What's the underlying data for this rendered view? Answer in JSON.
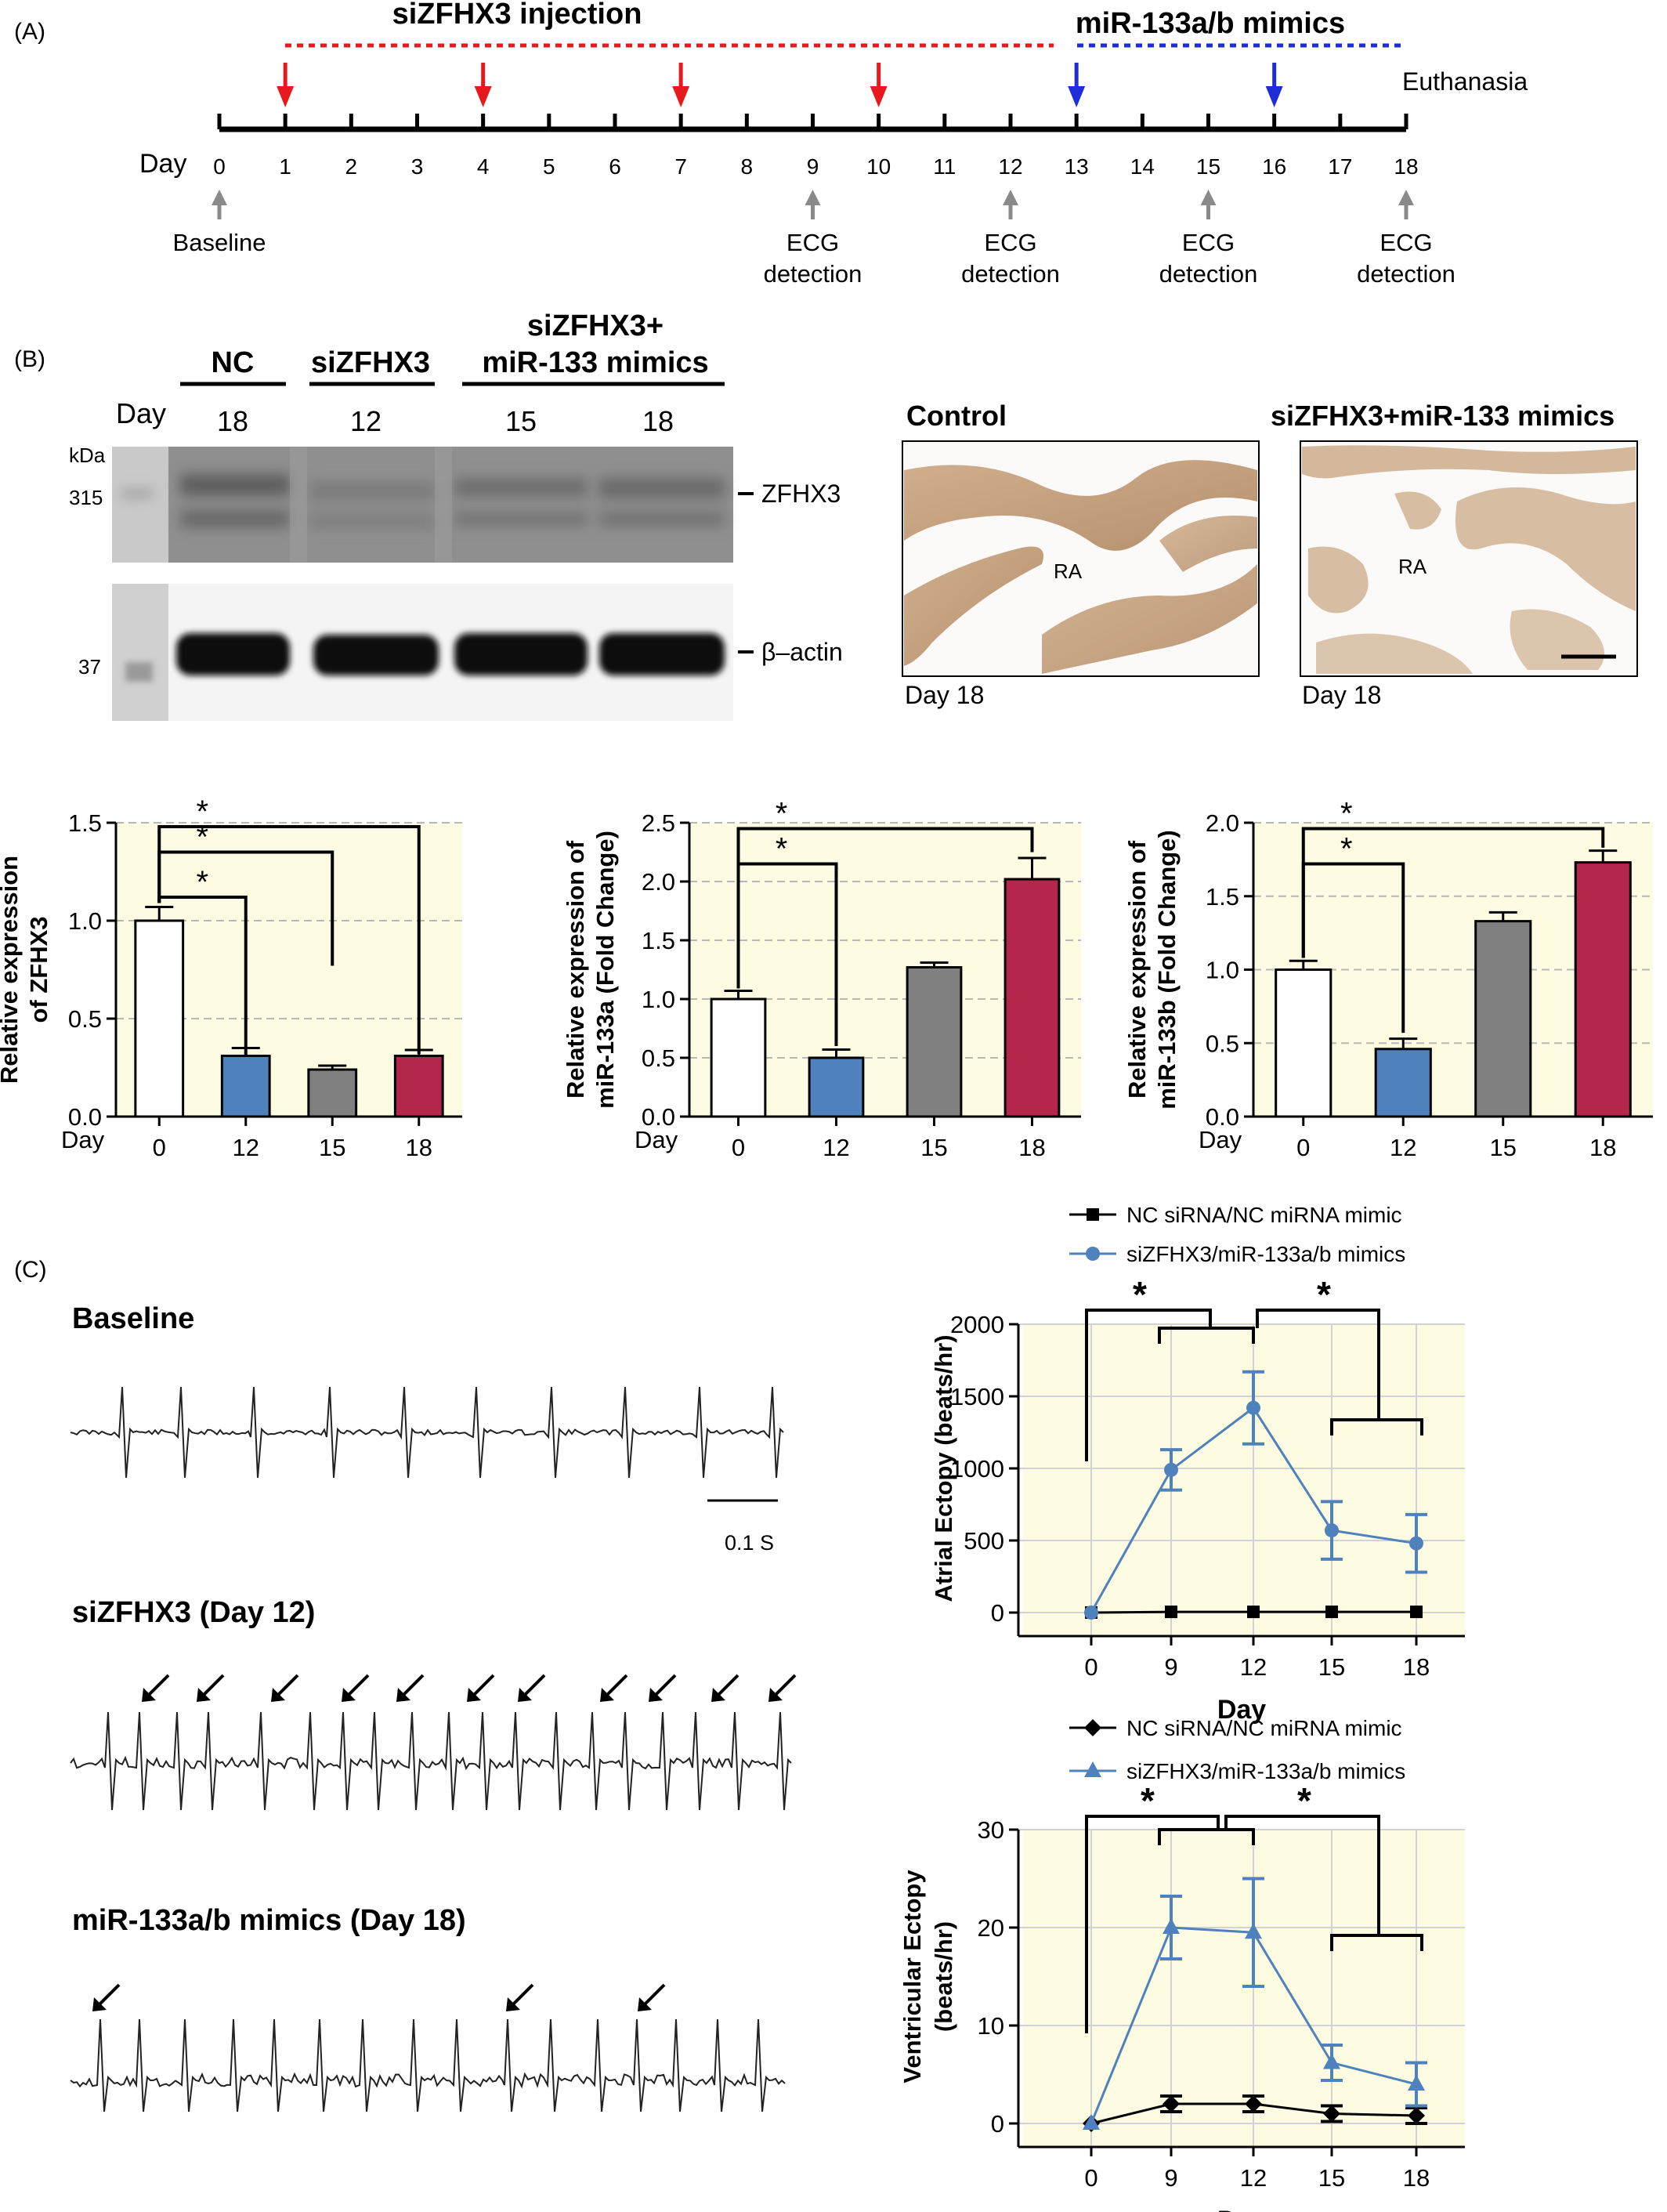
{
  "panelA": {
    "label": "(A)",
    "siZFHX3_label": "siZFHX3 injection",
    "mimics_label": "miR-133a/b mimics",
    "euthanasia": "Euthanasia",
    "day_label": "Day",
    "days": [
      "0",
      "1",
      "2",
      "3",
      "4",
      "5",
      "6",
      "7",
      "8",
      "9",
      "10",
      "11",
      "12",
      "13",
      "14",
      "15",
      "16",
      "17",
      "18"
    ],
    "red_arrow_days": [
      1,
      4,
      7,
      10
    ],
    "blue_arrow_days": [
      13,
      16
    ],
    "baseline": "Baseline",
    "ecg_events": [
      {
        "day": 9,
        "line1": "ECG",
        "line2": "detection"
      },
      {
        "day": 12,
        "line1": "ECG",
        "line2": "detection"
      },
      {
        "day": 15,
        "line1": "ECG",
        "line2": "detection"
      },
      {
        "day": 18,
        "line1": "ECG",
        "line2": "detection"
      }
    ],
    "colors": {
      "red": "#e8191d",
      "blue": "#1f2dd8",
      "gray": "#8a8a8a"
    }
  },
  "panelB": {
    "label": "(B)",
    "blot": {
      "group_nc": "NC",
      "group_si": "siZFHX3",
      "group_combo_line1": "siZFHX3+",
      "group_combo_line2": "miR-133 mimics",
      "day_label": "Day",
      "lane_days": [
        "18",
        "12",
        "15",
        "18"
      ],
      "kda": "kDa",
      "marker_top": "315",
      "marker_bottom": "37",
      "band_top": "ZFHX3",
      "band_bottom": "β–actin"
    },
    "histology": {
      "control_title": "Control",
      "combo_title": "siZFHX3+miR-133 mimics",
      "region": "RA",
      "day": "Day 18"
    },
    "bars": [
      {
        "ylabel1": "Relative expression",
        "ylabel2": "of ZFHX3",
        "ymax": 1.5,
        "yticks": [
          "0.0",
          "0.5",
          "1.0",
          "1.5"
        ],
        "values": [
          1.0,
          0.31,
          0.24,
          0.31
        ],
        "errors": [
          0.07,
          0.04,
          0.02,
          0.03
        ]
      },
      {
        "ylabel1": "Relative expression of",
        "ylabel2": "miR-133a (Fold Change)",
        "ymax": 2.5,
        "yticks": [
          "0.0",
          "0.5",
          "1.0",
          "1.5",
          "2.0",
          "2.5"
        ],
        "values": [
          1.0,
          0.5,
          1.27,
          2.02
        ],
        "errors": [
          0.07,
          0.07,
          0.04,
          0.18
        ]
      },
      {
        "ylabel1": "Relative expression of",
        "ylabel2": "miR-133b (Fold Change)",
        "ymax": 2.0,
        "yticks": [
          "0.0",
          "0.5",
          "1.0",
          "1.5",
          "2.0"
        ],
        "values": [
          1.0,
          0.46,
          1.33,
          1.73
        ],
        "errors": [
          0.06,
          0.07,
          0.06,
          0.08
        ]
      }
    ],
    "bar_categories": [
      "0",
      "12",
      "15",
      "18"
    ],
    "bar_colors": [
      "#ffffff",
      "#4f81bd",
      "#808080",
      "#b5264b"
    ],
    "xlabel": "Day",
    "sig": "*"
  },
  "panelC": {
    "label": "(C)",
    "traces": [
      {
        "title": "Baseline"
      },
      {
        "title": "siZFHX3 (Day 12)"
      },
      {
        "title": "miR-133a/b mimics (Day 18)"
      }
    ],
    "scale": "0.1 S",
    "legend_nc_atrial": "NC siRNA/NC miRNA mimic",
    "legend_si_atrial": "siZFHX3/miR-133a/b mimics",
    "legend_nc_vent": "NC siRNA/NC miRNA mimic",
    "legend_si_vent": "siZFHX3/miR-133a/b mimics",
    "xlabel": "Day",
    "sig": "*"
  },
  "chart_data": [
    {
      "type": "bar",
      "categories": [
        "0",
        "12",
        "15",
        "18"
      ],
      "values": [
        1.0,
        0.31,
        0.24,
        0.31
      ],
      "errors": [
        0.07,
        0.04,
        0.02,
        0.03
      ],
      "xlabel": "Day",
      "ylabel": "Relative expression of ZFHX3",
      "ylim": [
        0,
        1.5
      ]
    },
    {
      "type": "bar",
      "categories": [
        "0",
        "12",
        "15",
        "18"
      ],
      "values": [
        1.0,
        0.5,
        1.27,
        2.02
      ],
      "errors": [
        0.07,
        0.07,
        0.04,
        0.18
      ],
      "xlabel": "Day",
      "ylabel": "Relative expression of miR-133a (Fold Change)",
      "ylim": [
        0,
        2.5
      ]
    },
    {
      "type": "bar",
      "categories": [
        "0",
        "12",
        "15",
        "18"
      ],
      "values": [
        1.0,
        0.46,
        1.33,
        1.73
      ],
      "errors": [
        0.06,
        0.07,
        0.06,
        0.08
      ],
      "xlabel": "Day",
      "ylabel": "Relative expression of miR-133b (Fold Change)",
      "ylim": [
        0,
        2.0
      ]
    },
    {
      "type": "line",
      "x": [
        0,
        9,
        12,
        15,
        18
      ],
      "series": [
        {
          "name": "NC siRNA/NC miRNA mimic",
          "values": [
            0,
            5,
            5,
            5,
            5
          ],
          "color": "#000000"
        },
        {
          "name": "siZFHX3/miR-133a/b mimics",
          "values": [
            0,
            990,
            1420,
            570,
            480
          ],
          "errors": [
            0,
            140,
            250,
            200,
            200
          ],
          "color": "#4f81bd"
        }
      ],
      "xlabel": "Day",
      "ylabel": "Atrial Ectopy (beats/hr)",
      "ylim": [
        0,
        2000
      ],
      "yticks": [
        0,
        500,
        1000,
        1500,
        2000
      ]
    },
    {
      "type": "line",
      "x": [
        0,
        9,
        12,
        15,
        18
      ],
      "series": [
        {
          "name": "NC siRNA/NC miRNA mimic",
          "values": [
            0,
            2,
            2,
            1,
            0.8
          ],
          "errors": [
            0,
            0.8,
            0.8,
            0.8,
            0.8
          ],
          "color": "#000000"
        },
        {
          "name": "siZFHX3/miR-133a/b mimics",
          "values": [
            0,
            20,
            19.5,
            6.2,
            4
          ],
          "errors": [
            0,
            3.2,
            5.5,
            1.8,
            2.2
          ],
          "color": "#4f81bd"
        }
      ],
      "xlabel": "Day",
      "ylabel": "Ventricular Ectopy (beats/hr)",
      "ylim": [
        0,
        30
      ],
      "yticks": [
        0,
        10,
        20,
        30
      ]
    }
  ]
}
